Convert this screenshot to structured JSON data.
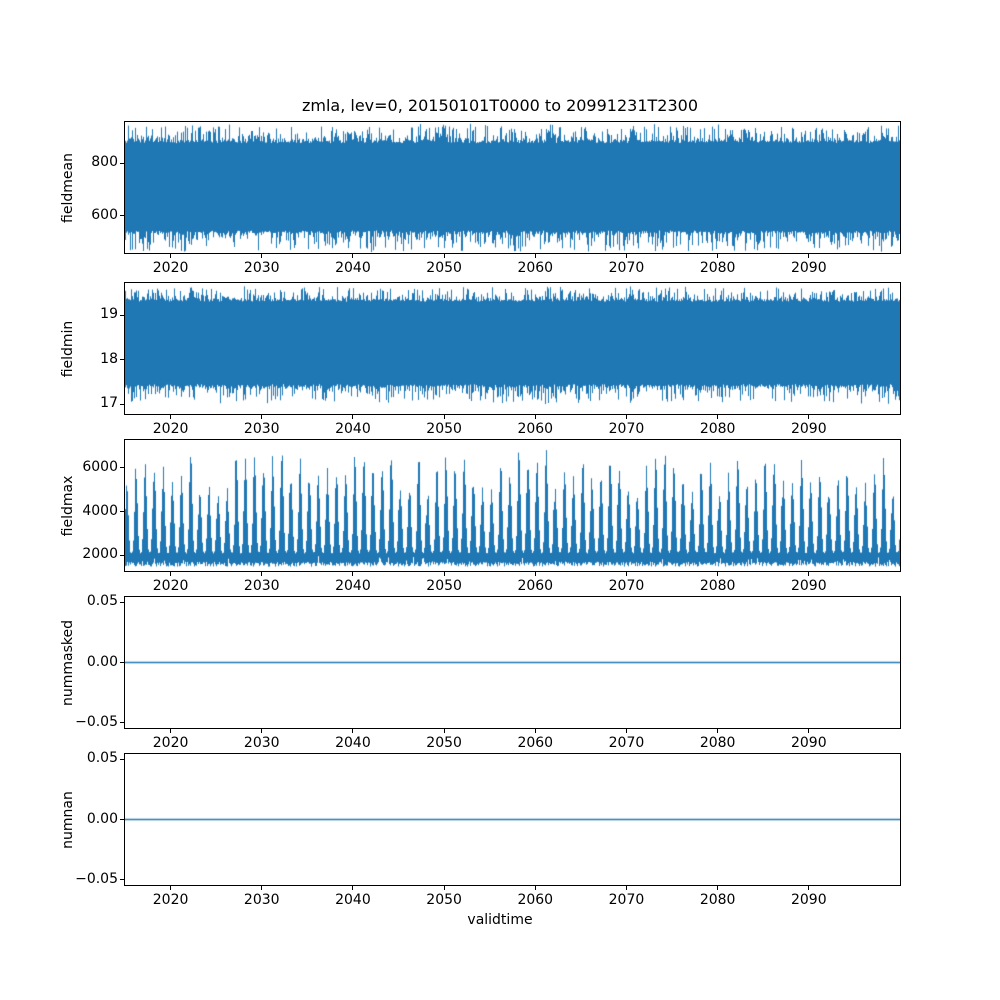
{
  "figure": {
    "title": "zmla, lev=0, 20150101T0000 to 20991231T2300",
    "xlabel": "validtime",
    "background": "#ffffff",
    "line_color": "#1f77b4"
  },
  "x_axis": {
    "lim": [
      2015,
      2100
    ],
    "ticks": [
      2020,
      2030,
      2040,
      2050,
      2060,
      2070,
      2080,
      2090
    ],
    "tick_labels": [
      "2020",
      "2030",
      "2040",
      "2050",
      "2060",
      "2070",
      "2080",
      "2090"
    ]
  },
  "chart_data": [
    {
      "type": "line",
      "title": "",
      "ylabel": "fieldmean",
      "ylim": [
        460,
        955
      ],
      "yticks": [
        600,
        800
      ],
      "ytick_labels": [
        "600",
        "800"
      ],
      "series": {
        "kind": "noise-band",
        "approx_min": 470,
        "core_min": 545,
        "core_max": 875,
        "approx_max": 940
      }
    },
    {
      "type": "line",
      "title": "",
      "ylabel": "fieldmin",
      "ylim": [
        16.78,
        19.72
      ],
      "yticks": [
        17,
        18,
        19
      ],
      "ytick_labels": [
        "17",
        "18",
        "19"
      ],
      "series": {
        "kind": "noise-band",
        "approx_min": 17.05,
        "core_min": 17.45,
        "core_max": 19.3,
        "approx_max": 19.6
      }
    },
    {
      "type": "line",
      "title": "",
      "ylabel": "fieldmax",
      "ylim": [
        1280,
        7280
      ],
      "yticks": [
        2000,
        4000,
        6000
      ],
      "ytick_labels": [
        "2000",
        "4000",
        "6000"
      ],
      "series": {
        "kind": "seasonal-spikes",
        "base_min": 1480,
        "base_max": 1700,
        "trough_top": 2150,
        "peak_min": 5000,
        "peak_max": 7050,
        "cycles": 85
      }
    },
    {
      "type": "line",
      "title": "",
      "ylabel": "nummasked",
      "ylim": [
        -0.0545,
        0.0545
      ],
      "yticks": [
        -0.05,
        0,
        0.05
      ],
      "ytick_labels": [
        "−0.05",
        "0.00",
        "0.05"
      ],
      "series": {
        "kind": "constant",
        "value": 0
      }
    },
    {
      "type": "line",
      "title": "",
      "ylabel": "numnan",
      "ylim": [
        -0.0545,
        0.0545
      ],
      "yticks": [
        -0.05,
        0,
        0.05
      ],
      "ytick_labels": [
        "−0.05",
        "0.00",
        "0.05"
      ],
      "series": {
        "kind": "constant",
        "value": 0
      }
    }
  ]
}
